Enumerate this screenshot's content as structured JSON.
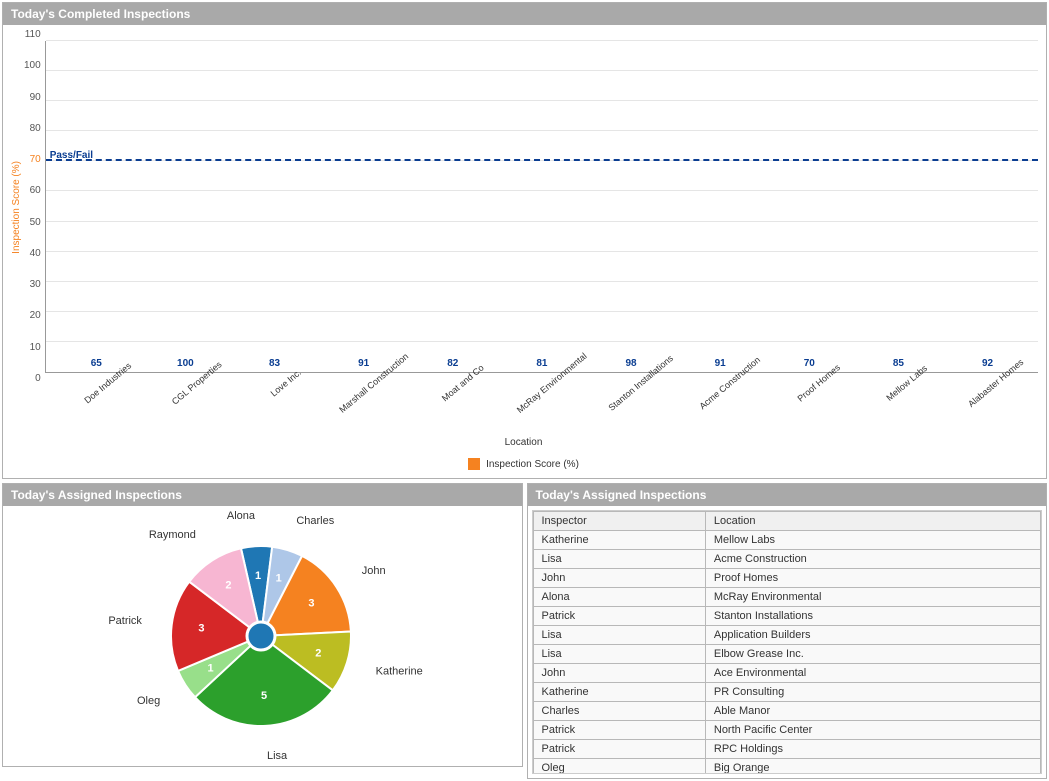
{
  "bar_panel": {
    "title": "Today's Completed Inspections",
    "chart": {
      "type": "bar",
      "y_label": "Inspection Score (%)",
      "x_label": "Location",
      "y_label_color": "#f58220",
      "series_name": "Inspection Score (%)",
      "bar_color": "#f58220",
      "value_label_color": "#0a3d91",
      "grid_color": "#e5e5e5",
      "axis_color": "#999999",
      "ylim": [
        0,
        110
      ],
      "ytick_step": 10,
      "reference_line": {
        "label": "Pass/Fail",
        "value": 70,
        "color": "#0a3d91"
      },
      "categories": [
        "Doe Industries",
        "CGL Properties",
        "Love Inc.",
        "Marshall Construction",
        "Moat and Co",
        "McRay Environmental",
        "Stanton Installations",
        "Acme Construction",
        "Proof Homes",
        "Mellow Labs",
        "Alabaster Homes"
      ],
      "values": [
        65,
        100,
        83,
        91,
        82,
        81,
        98,
        91,
        70,
        85,
        92
      ]
    }
  },
  "pie_panel": {
    "title": "Today's Assigned Inspections",
    "chart": {
      "type": "pie",
      "center_dot_color": "#1f77b4",
      "background": "#ffffff",
      "slices": [
        {
          "label": "Alona",
          "value": 1,
          "color": "#1f77b4"
        },
        {
          "label": "Charles",
          "value": 1,
          "color": "#aec7e8"
        },
        {
          "label": "John",
          "value": 3,
          "color": "#f58220"
        },
        {
          "label": "Katherine",
          "value": 2,
          "color": "#bcbd22"
        },
        {
          "label": "Lisa",
          "value": 5,
          "color": "#2ca02c"
        },
        {
          "label": "Oleg",
          "value": 1,
          "color": "#98df8a"
        },
        {
          "label": "Patrick",
          "value": 3,
          "color": "#d62728"
        },
        {
          "label": "Raymond",
          "value": 2,
          "color": "#f7b6d2"
        }
      ]
    }
  },
  "table_panel": {
    "title": "Today's Assigned Inspections",
    "columns": [
      "Inspector",
      "Location"
    ],
    "rows": [
      [
        "Katherine",
        "Mellow Labs"
      ],
      [
        "Lisa",
        "Acme Construction"
      ],
      [
        "John",
        "Proof Homes"
      ],
      [
        "Alona",
        "McRay Environmental"
      ],
      [
        "Patrick",
        "Stanton Installations"
      ],
      [
        "Lisa",
        "Application Builders"
      ],
      [
        "Lisa",
        "Elbow Grease Inc."
      ],
      [
        "John",
        "Ace Environmental"
      ],
      [
        "Katherine",
        "PR Consulting"
      ],
      [
        "Charles",
        "Able Manor"
      ],
      [
        "Patrick",
        "North Pacific Center"
      ],
      [
        "Patrick",
        "RPC Holdings"
      ],
      [
        "Oleg",
        "Big Orange"
      ]
    ]
  }
}
